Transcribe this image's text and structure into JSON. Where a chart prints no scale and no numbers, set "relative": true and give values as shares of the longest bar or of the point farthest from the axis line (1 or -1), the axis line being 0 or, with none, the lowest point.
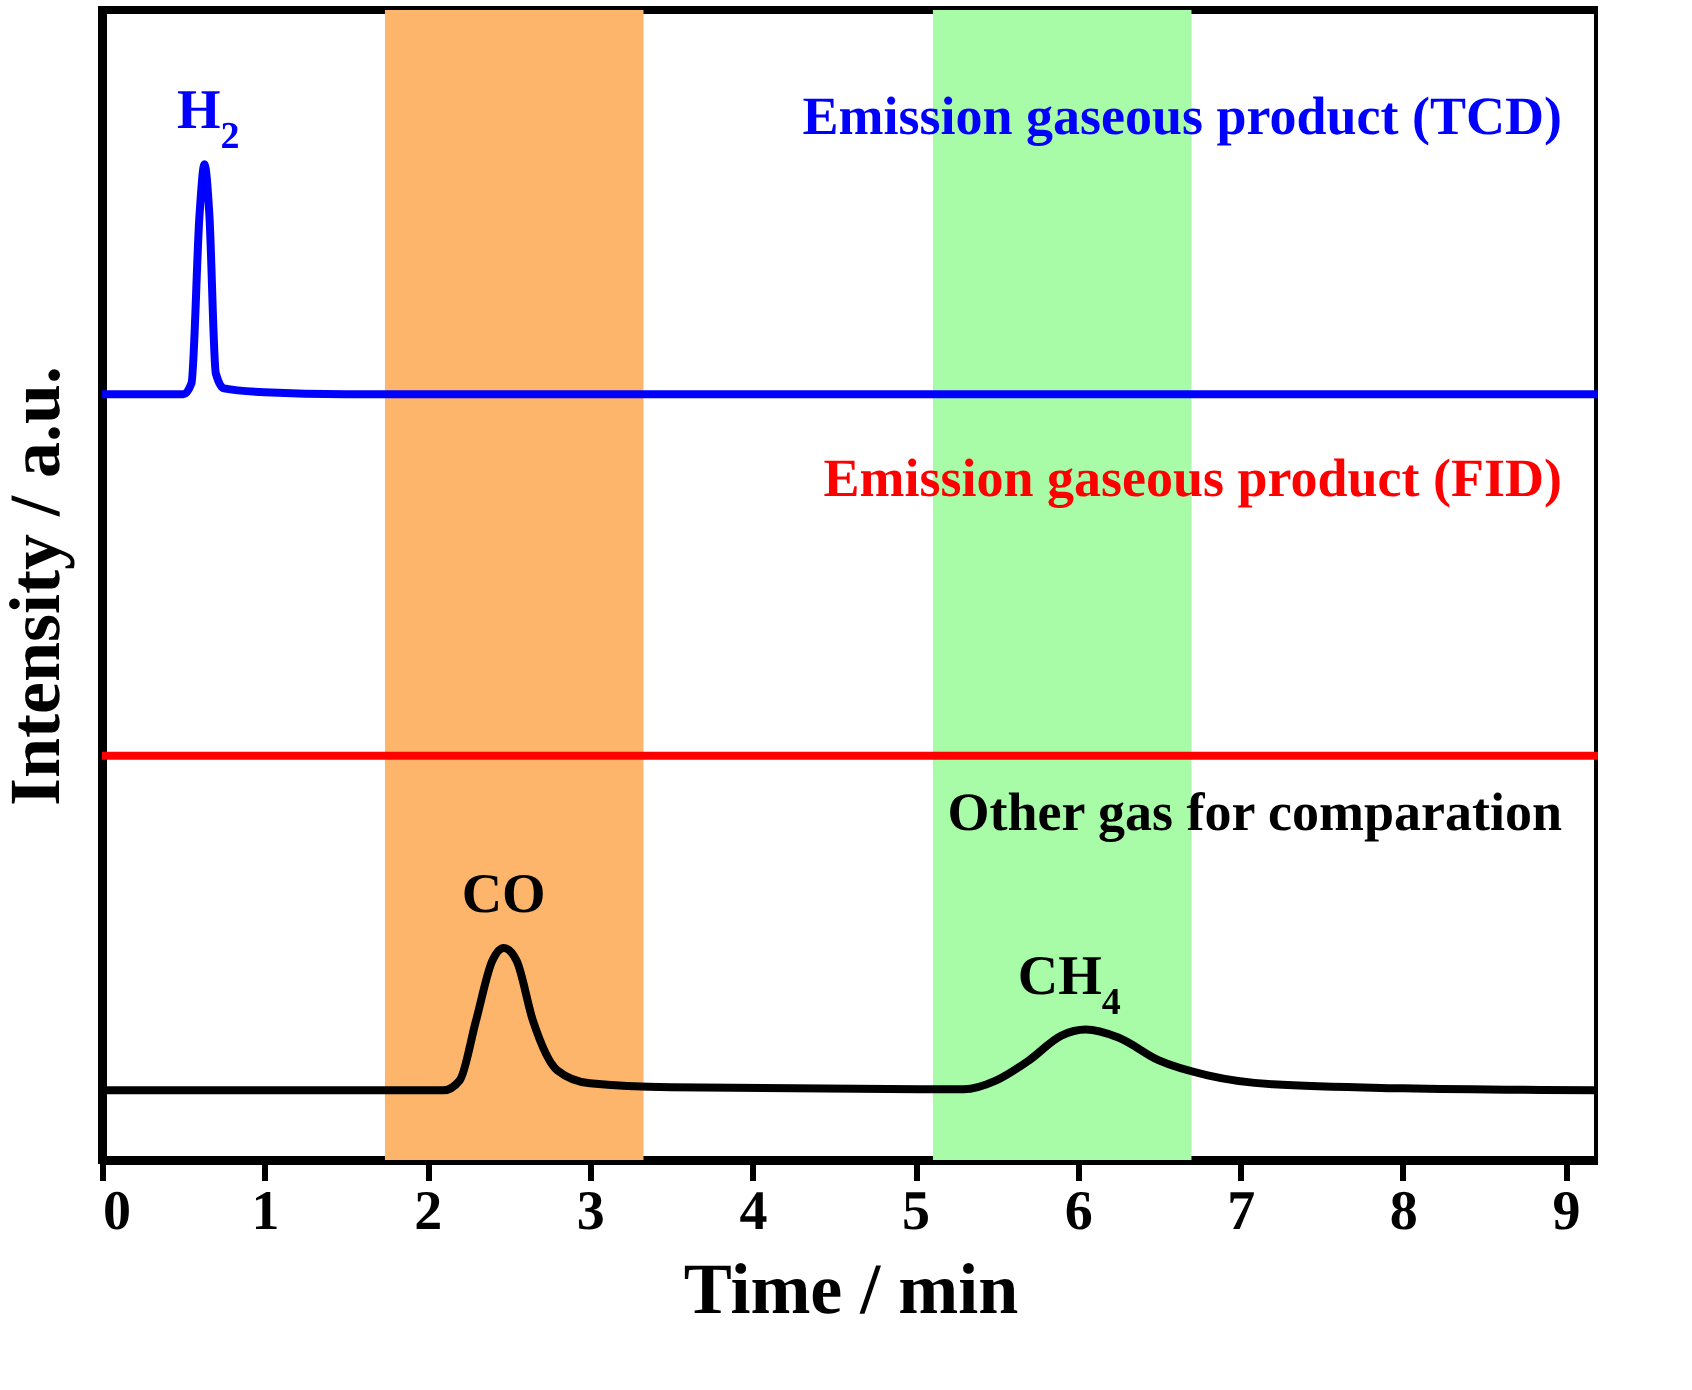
{
  "chart_data": {
    "type": "line",
    "relative": true,
    "xlabel": "Time / min",
    "ylabel": "Intensity / a.u.",
    "xlim": [
      0,
      9.2
    ],
    "xticks": [
      0,
      1,
      2,
      3,
      4,
      5,
      6,
      7,
      8,
      9
    ],
    "tick_labels": "x",
    "grid": false,
    "legend": false,
    "line_style": "solid",
    "marker": "none",
    "series": [
      {
        "name": "Emission gaseous product (TCD)",
        "color": "#0000ff",
        "x": [
          0,
          0.5,
          0.55,
          0.6,
          0.63,
          0.66,
          0.7,
          0.75,
          1.0,
          1.5,
          9.2
        ],
        "values": [
          0.769,
          0.769,
          0.78,
          0.95,
          1,
          0.95,
          0.79,
          0.775,
          0.771,
          0.769,
          0.769
        ]
      },
      {
        "name": "Emission gaseous product (FID)",
        "color": "#ff0000",
        "x": [
          0,
          9.2
        ],
        "values": [
          0.406,
          0.406
        ]
      },
      {
        "name": "Other gas for comparation",
        "color": "#000000",
        "x": [
          0,
          2.1,
          2.2,
          2.3,
          2.4,
          2.47,
          2.55,
          2.65,
          2.8,
          3.0,
          3.5,
          5.3,
          5.5,
          5.7,
          5.9,
          6.05,
          6.25,
          6.5,
          6.8,
          7.2,
          8,
          9.2
        ],
        "values": [
          0.07,
          0.07,
          0.08,
          0.14,
          0.2,
          0.213,
          0.2,
          0.14,
          0.09,
          0.077,
          0.073,
          0.071,
          0.08,
          0.1,
          0.125,
          0.131,
          0.123,
          0.1,
          0.085,
          0.076,
          0.072,
          0.07
        ]
      }
    ],
    "bands": [
      {
        "axis": "x",
        "from": 1.74,
        "to": 3.33,
        "color": "#fdb56b"
      },
      {
        "axis": "x",
        "from": 5.11,
        "to": 6.7,
        "color": "#a8fca8"
      }
    ],
    "annotations": [
      {
        "text": "H$_{2}$",
        "x": 0.63,
        "y": 1
      },
      {
        "text": "CO",
        "x": 2.47,
        "y": 0.213
      },
      {
        "text": "CH$_{4}$",
        "x": 6.05,
        "y": 0.131
      }
    ]
  }
}
